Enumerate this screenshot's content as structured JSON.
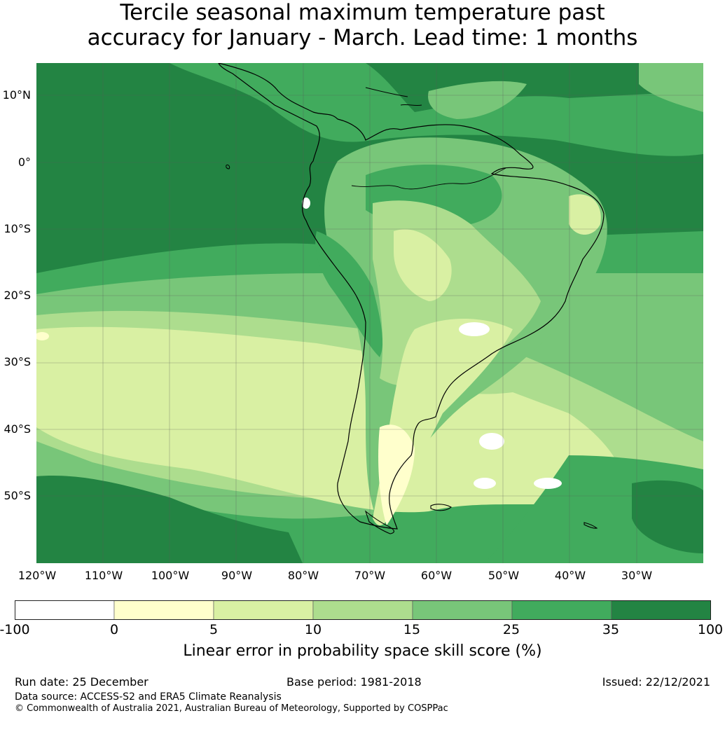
{
  "title": {
    "line1": "Tercile seasonal maximum temperature past",
    "line2": "accuracy for January - March. Lead time: 1 months"
  },
  "map": {
    "lat_labels": [
      "10°N",
      "0°",
      "10°S",
      "20°S",
      "30°S",
      "40°S",
      "50°S"
    ],
    "lon_labels": [
      "120°W",
      "110°W",
      "100°W",
      "90°W",
      "80°W",
      "70°W",
      "60°W",
      "50°W",
      "40°W",
      "30°W"
    ],
    "colors": {
      "ocean_dark": "#238443",
      "mid": "#41ab5d",
      "light": "#78c679",
      "lighter": "#addd8e",
      "pale": "#d9f0a3",
      "cream": "#ffffcc",
      "white": "#ffffff",
      "coast": "#000000",
      "grid": "#5a5a5a"
    }
  },
  "colorbar": {
    "ticks": [
      "-100",
      "0",
      "5",
      "10",
      "15",
      "25",
      "35",
      "100"
    ],
    "colors": [
      "#ffffff",
      "#ffffcc",
      "#d9f0a3",
      "#addd8e",
      "#78c679",
      "#41ab5d",
      "#238443"
    ],
    "label": "Linear error in probability space skill score (%)"
  },
  "footer": {
    "run_date": "Run date: 25 December",
    "base_period": "Base period: 1981-2018",
    "issued": "Issued: 22/12/2021",
    "data_source": "Data source: ACCESS-S2 and ERA5 Climate Reanalysis",
    "copyright": "© Commonwealth of Australia 2021, Australian Bureau of Meteorology, Supported by COSPPac"
  }
}
